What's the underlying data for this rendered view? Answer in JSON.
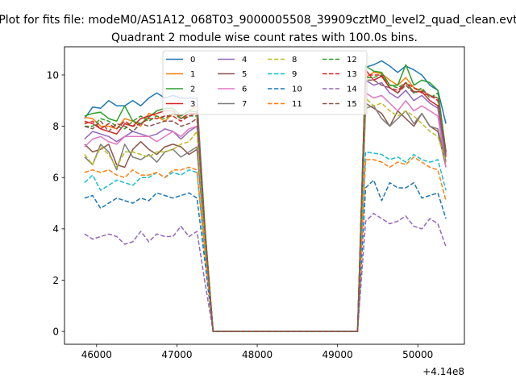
{
  "chart_data": {
    "type": "line",
    "suptitle": "Plot for fits file: modeM0/AS1A12_068T03_9000005508_39909cztM0_level2_quad_clean.evt",
    "title": "Quadrant 2 module wise count rates with 100.0s bins.",
    "xlabel": "",
    "ylabel": "",
    "x_offset_label": "+4.14e8",
    "xlim": [
      45600,
      50580
    ],
    "ylim": [
      -0.5,
      11.1
    ],
    "x_ticks": [
      46000,
      47000,
      48000,
      49000,
      50000
    ],
    "y_ticks": [
      0,
      2,
      4,
      6,
      8,
      10
    ],
    "x_tick_labels": [
      "46000",
      "47000",
      "48000",
      "49000",
      "50000"
    ],
    "y_tick_labels": [
      "0",
      "2",
      "4",
      "6",
      "8",
      "10"
    ],
    "grid": false,
    "legend": {
      "location": "upper center",
      "columns": 4
    },
    "x": [
      45850,
      45950,
      46050,
      46150,
      46250,
      46350,
      46450,
      46550,
      46650,
      46750,
      46850,
      46950,
      47050,
      47150,
      47250,
      47350,
      47450,
      47550,
      47650,
      47750,
      47850,
      47950,
      48050,
      48150,
      48250,
      48350,
      48450,
      48550,
      48650,
      48750,
      48850,
      48950,
      49050,
      49150,
      49250,
      49350,
      49450,
      49550,
      49650,
      49750,
      49850,
      49950,
      50050,
      50150,
      50250,
      50350
    ],
    "series": [
      {
        "name": "0",
        "color": "#1f77b4",
        "dash": false,
        "values": [
          8.3,
          8.75,
          8.7,
          9.0,
          8.8,
          8.8,
          9.0,
          8.8,
          9.1,
          9.3,
          9.1,
          9.2,
          9.1,
          9.1,
          9.1,
          4.0,
          0,
          0,
          0,
          0,
          0,
          0,
          0,
          0,
          0,
          0,
          0,
          0,
          0,
          0,
          0,
          0,
          0,
          0,
          0,
          10.3,
          10.4,
          10.55,
          10.35,
          10.1,
          10.35,
          10.2,
          10.0,
          9.6,
          9.4,
          8.1
        ]
      },
      {
        "name": "1",
        "color": "#ff7f0e",
        "dash": false,
        "values": [
          8.35,
          8.3,
          8.0,
          8.0,
          7.9,
          8.3,
          8.2,
          8.0,
          8.5,
          8.4,
          8.2,
          8.5,
          8.4,
          8.6,
          8.8,
          3.8,
          0,
          0,
          0,
          0,
          0,
          0,
          0,
          0,
          0,
          0,
          0,
          0,
          0,
          0,
          0,
          0,
          0,
          0,
          0,
          9.9,
          10.1,
          10.05,
          9.8,
          9.6,
          9.9,
          9.5,
          9.4,
          9.2,
          9.1,
          6.9
        ]
      },
      {
        "name": "2",
        "color": "#2ca02c",
        "dash": false,
        "values": [
          8.4,
          8.5,
          8.55,
          8.3,
          8.2,
          8.8,
          8.2,
          8.1,
          8.35,
          8.6,
          8.7,
          8.7,
          8.4,
          8.6,
          8.55,
          4.0,
          0,
          0,
          0,
          0,
          0,
          0,
          0,
          0,
          0,
          0,
          0,
          0,
          0,
          0,
          0,
          0,
          0,
          0,
          0,
          10.35,
          10.15,
          10.1,
          9.6,
          9.6,
          10.4,
          9.6,
          9.8,
          9.7,
          9.4,
          7.0
        ]
      },
      {
        "name": "3",
        "color": "#d62728",
        "dash": false,
        "values": [
          8.2,
          8.1,
          7.9,
          7.8,
          7.7,
          8.1,
          8.0,
          8.3,
          8.4,
          8.5,
          8.6,
          8.6,
          8.3,
          8.5,
          8.5,
          3.9,
          0,
          0,
          0,
          0,
          0,
          0,
          0,
          0,
          0,
          0,
          0,
          0,
          0,
          0,
          0,
          0,
          0,
          0,
          0,
          10.2,
          9.8,
          9.95,
          9.5,
          9.3,
          9.7,
          9.35,
          9.35,
          9.0,
          8.8,
          6.8
        ]
      },
      {
        "name": "4",
        "color": "#9467bd",
        "dash": false,
        "values": [
          7.5,
          7.8,
          7.7,
          7.6,
          7.4,
          7.6,
          7.8,
          7.7,
          7.6,
          7.7,
          7.9,
          7.8,
          7.5,
          7.8,
          8.0,
          3.7,
          0,
          0,
          0,
          0,
          0,
          0,
          0,
          0,
          0,
          0,
          0,
          0,
          0,
          0,
          0,
          0,
          0,
          0,
          0,
          9.8,
          9.6,
          9.7,
          9.3,
          9.1,
          9.4,
          9.0,
          9.2,
          8.9,
          8.7,
          6.6
        ]
      },
      {
        "name": "5",
        "color": "#8c564b",
        "dash": false,
        "values": [
          7.3,
          7.0,
          7.1,
          7.3,
          6.5,
          6.4,
          7.1,
          7.4,
          7.1,
          6.9,
          7.2,
          7.3,
          7.2,
          6.9,
          7.1,
          3.5,
          0,
          0,
          0,
          0,
          0,
          0,
          0,
          0,
          0,
          0,
          0,
          0,
          0,
          0,
          0,
          0,
          0,
          0,
          0,
          8.9,
          8.7,
          8.5,
          8.0,
          8.6,
          8.3,
          8.0,
          8.5,
          8.0,
          7.8,
          6.4
        ]
      },
      {
        "name": "6",
        "color": "#e377c2",
        "dash": false,
        "values": [
          7.2,
          7.5,
          7.6,
          7.4,
          7.3,
          7.6,
          7.6,
          7.6,
          7.6,
          7.4,
          7.6,
          7.8,
          7.6,
          7.9,
          8.0,
          3.6,
          0,
          0,
          0,
          0,
          0,
          0,
          0,
          0,
          0,
          0,
          0,
          0,
          0,
          0,
          0,
          0,
          0,
          0,
          0,
          9.3,
          9.1,
          9.2,
          8.9,
          8.6,
          9.0,
          8.6,
          8.8,
          8.6,
          8.4,
          6.4
        ]
      },
      {
        "name": "7",
        "color": "#7f7f7f",
        "dash": false,
        "values": [
          6.8,
          6.5,
          7.3,
          7.0,
          6.3,
          7.3,
          6.8,
          6.7,
          6.9,
          6.6,
          7.0,
          7.1,
          6.8,
          7.0,
          7.2,
          3.4,
          0,
          0,
          0,
          0,
          0,
          0,
          0,
          0,
          0,
          0,
          0,
          0,
          0,
          0,
          0,
          0,
          0,
          0,
          0,
          8.7,
          8.8,
          8.3,
          8.0,
          8.3,
          8.6,
          8.1,
          8.5,
          8.0,
          7.9,
          6.6
        ]
      },
      {
        "name": "8",
        "color": "#bcbd22",
        "dash": true,
        "values": [
          6.9,
          6.5,
          7.2,
          6.9,
          6.4,
          7.0,
          7.0,
          6.9,
          6.8,
          7.0,
          7.0,
          7.1,
          7.3,
          7.4,
          7.8,
          3.5,
          0,
          0,
          0,
          0,
          0,
          0,
          0,
          0,
          0,
          0,
          0,
          0,
          0,
          0,
          0,
          0,
          0,
          0,
          0,
          9.1,
          8.8,
          8.9,
          8.6,
          8.4,
          8.6,
          8.4,
          8.1,
          7.8,
          7.6,
          6.6
        ]
      },
      {
        "name": "9",
        "color": "#17becf",
        "dash": true,
        "values": [
          5.8,
          6.1,
          5.5,
          5.7,
          5.9,
          5.8,
          5.7,
          6.0,
          6.0,
          6.2,
          6.0,
          6.2,
          6.1,
          6.3,
          6.2,
          3.0,
          0,
          0,
          0,
          0,
          0,
          0,
          0,
          0,
          0,
          0,
          0,
          0,
          0,
          0,
          0,
          0,
          0,
          0,
          0,
          7.0,
          6.95,
          6.9,
          6.7,
          6.8,
          6.6,
          6.9,
          6.7,
          6.6,
          6.7,
          5.5
        ]
      },
      {
        "name": "10",
        "color": "#1f77b4",
        "dash": true,
        "values": [
          5.2,
          5.3,
          4.8,
          5.0,
          5.2,
          5.1,
          5.0,
          5.2,
          5.1,
          5.4,
          5.3,
          5.2,
          5.3,
          5.4,
          5.2,
          2.7,
          0,
          0,
          0,
          0,
          0,
          0,
          0,
          0,
          0,
          0,
          0,
          0,
          0,
          0,
          0,
          0,
          0,
          0,
          0,
          5.6,
          5.9,
          5.1,
          5.8,
          5.6,
          5.6,
          5.8,
          5.2,
          5.3,
          5.4,
          4.4
        ]
      },
      {
        "name": "11",
        "color": "#ff7f0e",
        "dash": true,
        "values": [
          6.2,
          6.3,
          6.2,
          6.3,
          6.1,
          6.0,
          6.3,
          6.1,
          6.1,
          6.2,
          6.0,
          6.3,
          6.3,
          6.4,
          6.3,
          3.1,
          0,
          0,
          0,
          0,
          0,
          0,
          0,
          0,
          0,
          0,
          0,
          0,
          0,
          0,
          0,
          0,
          0,
          0,
          0,
          6.7,
          6.7,
          6.6,
          6.4,
          6.6,
          6.5,
          6.8,
          6.6,
          6.4,
          6.3,
          5.1
        ]
      },
      {
        "name": "12",
        "color": "#2ca02c",
        "dash": true,
        "values": [
          8.0,
          8.0,
          8.3,
          8.2,
          8.0,
          7.9,
          8.2,
          8.4,
          8.2,
          8.4,
          8.3,
          8.5,
          8.3,
          8.4,
          8.4,
          3.9,
          0,
          0,
          0,
          0,
          0,
          0,
          0,
          0,
          0,
          0,
          0,
          0,
          0,
          0,
          0,
          0,
          0,
          0,
          0,
          9.9,
          9.9,
          10.0,
          9.6,
          9.5,
          9.7,
          9.3,
          9.5,
          9.1,
          9.3,
          7.0
        ]
      },
      {
        "name": "13",
        "color": "#d62728",
        "dash": true,
        "values": [
          8.1,
          8.2,
          7.9,
          8.1,
          7.9,
          8.2,
          8.0,
          8.1,
          8.3,
          8.3,
          8.4,
          8.4,
          8.2,
          8.4,
          8.5,
          3.9,
          0,
          0,
          0,
          0,
          0,
          0,
          0,
          0,
          0,
          0,
          0,
          0,
          0,
          0,
          0,
          0,
          0,
          0,
          0,
          10.0,
          10.0,
          10.0,
          9.5,
          9.4,
          9.7,
          9.5,
          9.3,
          9.2,
          9.0,
          7.0
        ]
      },
      {
        "name": "14",
        "color": "#9467bd",
        "dash": true,
        "values": [
          3.8,
          3.6,
          3.7,
          3.8,
          3.7,
          3.4,
          3.5,
          3.9,
          3.5,
          3.8,
          3.7,
          3.7,
          4.1,
          3.7,
          3.9,
          1.9,
          0,
          0,
          0,
          0,
          0,
          0,
          0,
          0,
          0,
          0,
          0,
          0,
          0,
          0,
          0,
          0,
          0,
          0,
          0,
          4.3,
          4.6,
          4.4,
          4.2,
          4.3,
          4.5,
          4.1,
          4.0,
          4.4,
          4.2,
          3.3
        ]
      },
      {
        "name": "15",
        "color": "#8c564b",
        "dash": true,
        "values": [
          8.0,
          7.9,
          8.2,
          7.8,
          8.1,
          8.0,
          7.8,
          8.1,
          8.0,
          8.1,
          8.2,
          8.2,
          8.0,
          8.1,
          8.3,
          3.8,
          0,
          0,
          0,
          0,
          0,
          0,
          0,
          0,
          0,
          0,
          0,
          0,
          0,
          0,
          0,
          0,
          0,
          0,
          0,
          9.8,
          9.8,
          9.6,
          9.5,
          9.3,
          9.6,
          9.3,
          9.4,
          9.2,
          9.1,
          6.9
        ]
      }
    ]
  }
}
